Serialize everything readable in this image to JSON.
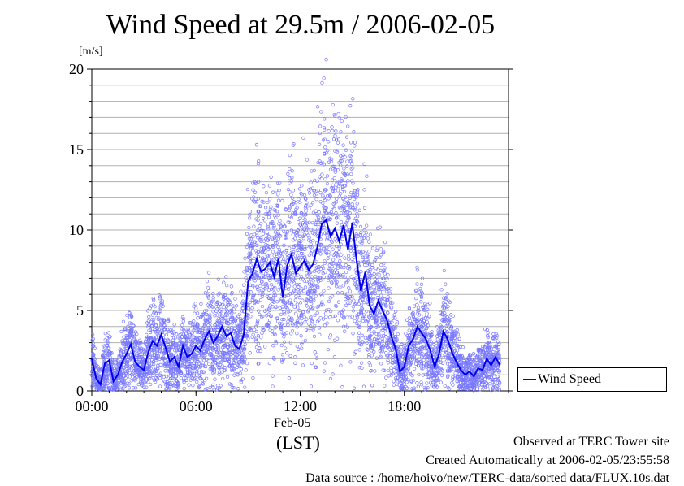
{
  "chart_data": {
    "type": "line",
    "title": "Wind Speed at 29.5m / 2006-02-05",
    "ylabel": "[m/s]",
    "xlabel": "(LST)",
    "date_label": "Feb-05",
    "x_tick_labels": [
      "00:00",
      "06:00",
      "12:00",
      "18:00"
    ],
    "x_ticks_hours": [
      0,
      6,
      12,
      18
    ],
    "xlim": [
      0,
      24
    ],
    "ylim": [
      0,
      20
    ],
    "y_ticks": [
      0,
      5,
      10,
      15,
      20
    ],
    "grid": true,
    "legend_position": "right-bottom",
    "series": [
      {
        "name": "Wind Speed",
        "color": "#0000ee",
        "x": [
          0,
          0.25,
          0.5,
          0.75,
          1,
          1.25,
          1.5,
          1.75,
          2,
          2.25,
          2.5,
          2.75,
          3,
          3.25,
          3.5,
          3.75,
          4,
          4.25,
          4.5,
          4.75,
          5,
          5.25,
          5.5,
          5.75,
          6,
          6.25,
          6.5,
          6.75,
          7,
          7.25,
          7.5,
          7.75,
          8,
          8.25,
          8.5,
          8.75,
          9,
          9.25,
          9.5,
          9.75,
          10,
          10.25,
          10.5,
          10.75,
          11,
          11.25,
          11.5,
          11.75,
          12,
          12.25,
          12.5,
          12.75,
          13,
          13.25,
          13.5,
          13.75,
          14,
          14.25,
          14.5,
          14.75,
          15,
          15.25,
          15.5,
          15.75,
          16,
          16.25,
          16.5,
          16.75,
          17,
          17.25,
          17.5,
          17.75,
          18,
          18.25,
          18.5,
          18.75,
          19,
          19.25,
          19.5,
          19.75,
          20,
          20.25,
          20.5,
          20.75,
          21,
          21.25,
          21.5,
          21.75,
          22,
          22.25,
          22.5,
          22.75,
          23,
          23.25,
          23.5
        ],
        "values": [
          2.0,
          0.8,
          0.4,
          1.7,
          1.9,
          0.6,
          1.0,
          1.8,
          2.3,
          2.9,
          1.8,
          1.5,
          1.3,
          2.4,
          3.1,
          2.8,
          3.5,
          2.7,
          1.8,
          2.1,
          1.5,
          2.8,
          2.1,
          2.3,
          2.8,
          2.5,
          3.2,
          3.7,
          3.0,
          3.4,
          4.0,
          3.4,
          3.6,
          2.8,
          2.6,
          3.5,
          6.8,
          7.3,
          8.2,
          7.4,
          7.6,
          8.0,
          7.1,
          8.2,
          5.8,
          7.8,
          8.5,
          7.3,
          7.7,
          8.1,
          7.5,
          7.9,
          9.0,
          10.4,
          10.6,
          9.6,
          10.1,
          9.3,
          10.3,
          8.8,
          10.4,
          8.1,
          6.2,
          7.4,
          5.3,
          4.8,
          5.6,
          5.0,
          4.4,
          3.4,
          2.6,
          1.2,
          1.5,
          2.8,
          3.2,
          4.0,
          3.6,
          3.2,
          2.5,
          1.5,
          2.3,
          3.7,
          3.2,
          2.4,
          1.8,
          1.3,
          1.0,
          1.2,
          0.9,
          1.4,
          1.3,
          2.0,
          1.6,
          2.1,
          1.6
        ]
      }
    ]
  },
  "annotations": {
    "footer_site": "Observed at TERC Tower site",
    "footer_created": "Created Automatically at 2006-02-05/23:55:58",
    "footer_source": "Data source : /home/hoivo/new/TERC-data/sorted  data/FLUX.10s.dat"
  }
}
